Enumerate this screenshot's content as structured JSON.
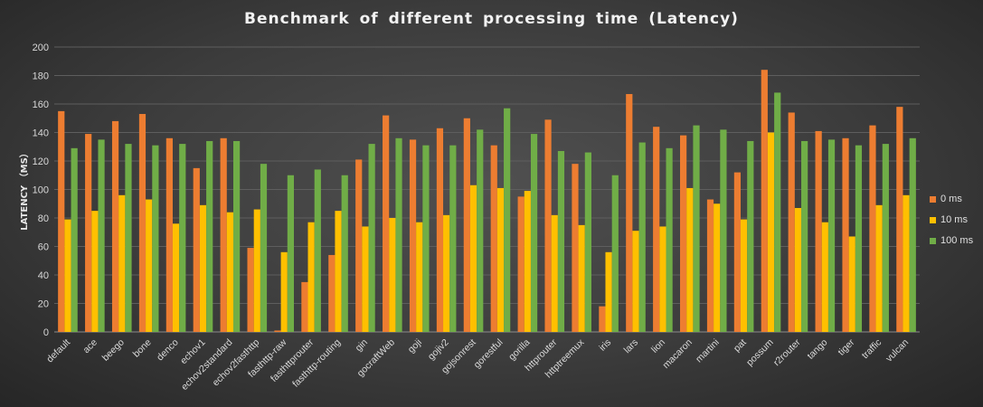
{
  "chart_data": {
    "type": "bar",
    "title": "Benchmark of different processing time (Latency)",
    "xlabel": "",
    "ylabel": "LATENCY （MS）",
    "ylim": [
      0,
      200
    ],
    "yticks": [
      "0",
      "20",
      "40",
      "60",
      "80",
      "100",
      "120",
      "140",
      "160",
      "180",
      "200"
    ],
    "grid": true,
    "legend_position": "right",
    "categories": [
      "default",
      "ace",
      "beego",
      "bone",
      "denco",
      "echov1",
      "echov2standard",
      "echov2fasthttp",
      "fasthttp-raw",
      "fasthttprouter",
      "fasthttp-routing",
      "gin",
      "gocraftWeb",
      "goji",
      "gojiv2",
      "gojsonrest",
      "gorestful",
      "gorilla",
      "httprouter",
      "httptreemux",
      "iris",
      "lars",
      "lion",
      "macaron",
      "martini",
      "pat",
      "possum",
      "r2router",
      "tango",
      "tiger",
      "traffic",
      "vulcan"
    ],
    "series": [
      {
        "name": "0 ms",
        "color": "#ed7d31",
        "values": [
          155,
          139,
          148,
          153,
          136,
          115,
          136,
          59,
          1,
          35,
          54,
          121,
          152,
          135,
          143,
          150,
          131,
          95,
          149,
          118,
          18,
          167,
          144,
          138,
          93,
          112,
          184,
          154,
          141,
          136,
          145,
          158
        ]
      },
      {
        "name": "10 ms",
        "color": "#ffc000",
        "values": [
          79,
          85,
          96,
          93,
          76,
          89,
          84,
          86,
          56,
          77,
          85,
          74,
          80,
          77,
          82,
          103,
          101,
          99,
          82,
          75,
          56,
          71,
          74,
          101,
          90,
          79,
          140,
          87,
          77,
          67,
          89,
          96
        ]
      },
      {
        "name": "100 ms",
        "color": "#70ad47",
        "values": [
          129,
          135,
          132,
          131,
          132,
          134,
          134,
          118,
          110,
          114,
          110,
          132,
          136,
          131,
          131,
          142,
          157,
          139,
          127,
          126,
          110,
          133,
          129,
          145,
          142,
          134,
          168,
          134,
          135,
          131,
          132,
          136
        ]
      }
    ]
  }
}
